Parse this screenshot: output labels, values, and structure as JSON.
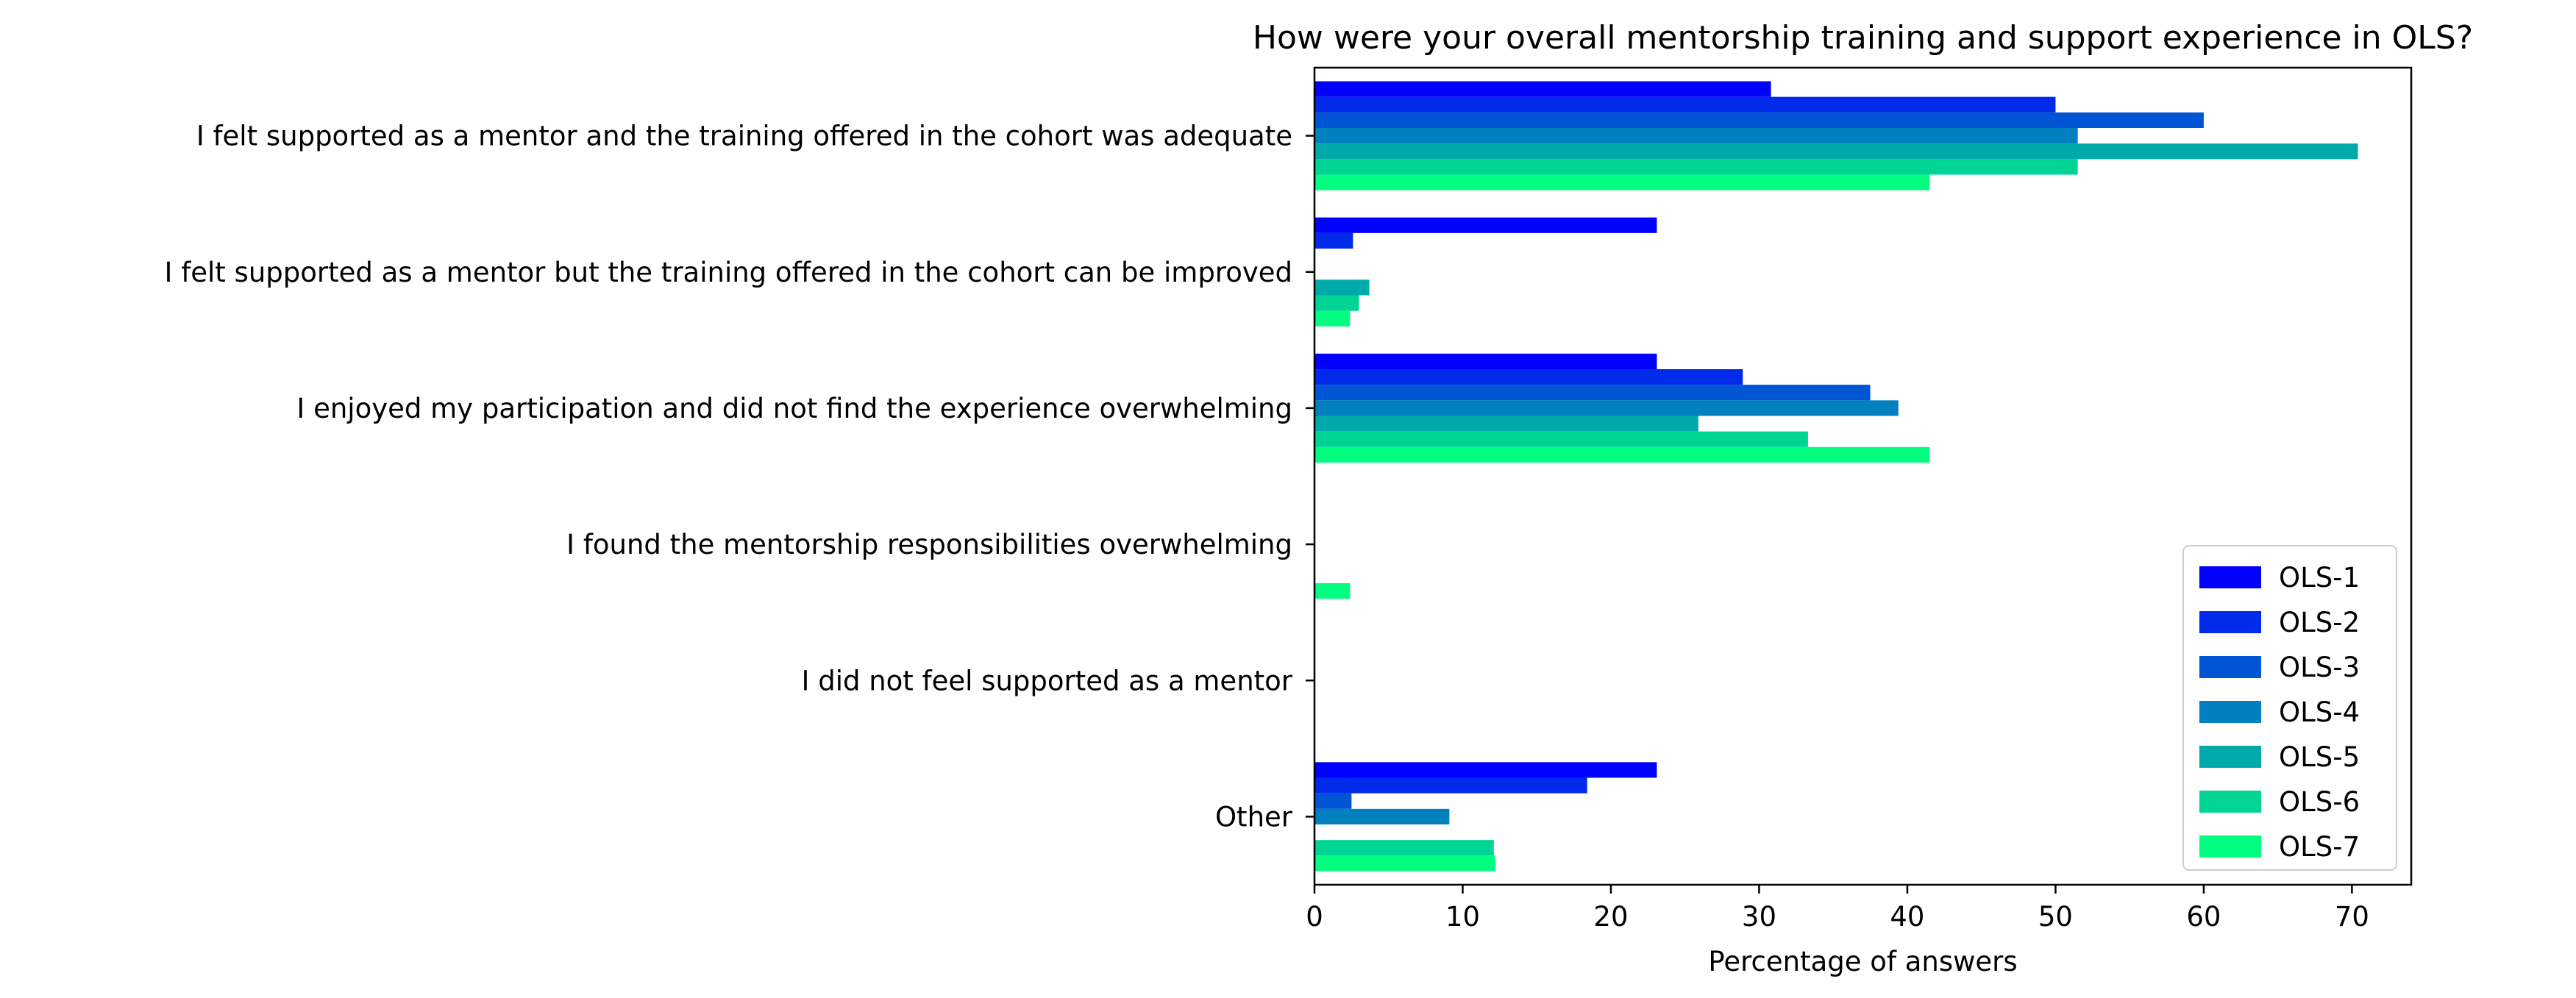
{
  "chart_data": {
    "type": "bar",
    "orientation": "horizontal",
    "title": "How were your overall mentorship training and support experience in OLS?",
    "xlabel": "Percentage of answers",
    "ylabel": "",
    "xlim": [
      0,
      74
    ],
    "xticks": [
      0,
      10,
      20,
      30,
      40,
      50,
      60,
      70
    ],
    "grid": false,
    "legend_position": "lower-right",
    "categories": [
      "I felt supported as a mentor and the training offered in the cohort was adequate",
      "I felt supported as a mentor but the training offered in the cohort can be improved",
      "I enjoyed my participation and did not find the experience overwhelming",
      "I found the mentorship responsibilities overwhelming",
      "I did not feel supported as a mentor",
      "Other"
    ],
    "series": [
      {
        "name": "OLS-1",
        "color": "#0000ff",
        "values": [
          30.8,
          23.1,
          23.1,
          0,
          0,
          23.1
        ]
      },
      {
        "name": "OLS-2",
        "color": "#002ae9",
        "values": [
          50.0,
          2.6,
          28.9,
          0,
          0,
          18.4
        ]
      },
      {
        "name": "OLS-3",
        "color": "#0055d4",
        "values": [
          60.0,
          0,
          37.5,
          0,
          0,
          2.5
        ]
      },
      {
        "name": "OLS-4",
        "color": "#0080bf",
        "values": [
          51.5,
          0,
          39.4,
          0,
          0,
          9.1
        ]
      },
      {
        "name": "OLS-5",
        "color": "#00aaaa",
        "values": [
          70.4,
          3.7,
          25.9,
          0,
          0,
          0
        ]
      },
      {
        "name": "OLS-6",
        "color": "#00d494",
        "values": [
          51.5,
          3.0,
          33.3,
          0,
          0,
          12.1
        ]
      },
      {
        "name": "OLS-7",
        "color": "#00ff80",
        "values": [
          41.5,
          2.4,
          41.5,
          2.4,
          0,
          12.2
        ]
      }
    ]
  }
}
